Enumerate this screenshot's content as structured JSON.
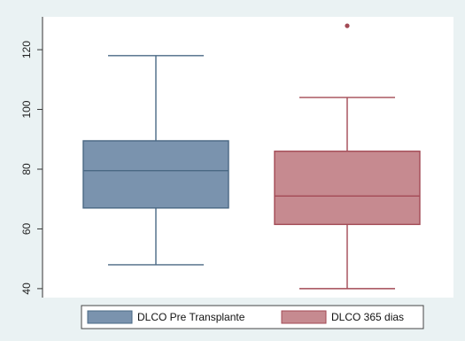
{
  "chart_data": {
    "type": "box",
    "title": "",
    "xlabel": "",
    "ylabel": "",
    "ylim": [
      37,
      131
    ],
    "yticks": [
      40,
      60,
      80,
      100,
      120
    ],
    "grid": false,
    "legend_position": "bottom",
    "series": [
      {
        "name": "DLCO  Pre Transplante",
        "color": "#7a93ae",
        "stroke": "#4a6884",
        "whisker_low": 48,
        "q1": 67,
        "median": 79.5,
        "q3": 89.5,
        "whisker_high": 118,
        "outliers": []
      },
      {
        "name": "DLCO 365 dias",
        "color": "#c68a90",
        "stroke": "#a34a55",
        "whisker_low": 40,
        "q1": 61.5,
        "median": 71,
        "q3": 86,
        "whisker_high": 104,
        "outliers": [
          128
        ]
      }
    ]
  }
}
